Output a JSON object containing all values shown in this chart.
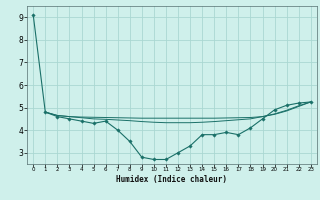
{
  "xlabel": "Humidex (Indice chaleur)",
  "ylabel": "",
  "bg_color": "#cff0eb",
  "grid_color": "#aad8d2",
  "line_color": "#1a7068",
  "marker_color": "#1a7068",
  "xlim": [
    -0.5,
    23.5
  ],
  "ylim": [
    2.5,
    9.5
  ],
  "yticks": [
    3,
    4,
    5,
    6,
    7,
    8,
    9
  ],
  "xticks": [
    0,
    1,
    2,
    3,
    4,
    5,
    6,
    7,
    8,
    9,
    10,
    11,
    12,
    13,
    14,
    15,
    16,
    17,
    18,
    19,
    20,
    21,
    22,
    23
  ],
  "series": [
    {
      "x": [
        0,
        1,
        2,
        3,
        4,
        5,
        6,
        7,
        8,
        9,
        10,
        11,
        12,
        13,
        14,
        15,
        16,
        17,
        18,
        19,
        20,
        21,
        22,
        23
      ],
      "y": [
        9.1,
        4.8,
        4.6,
        4.5,
        4.4,
        4.3,
        4.4,
        4.0,
        3.5,
        2.8,
        2.7,
        2.7,
        3.0,
        3.3,
        3.8,
        3.8,
        3.9,
        3.8,
        4.1,
        4.5,
        4.9,
        5.1,
        5.2,
        5.25
      ],
      "has_markers": true
    },
    {
      "x": [
        1,
        2,
        3,
        4,
        5,
        6,
        7,
        8,
        9,
        10,
        11,
        12,
        13,
        14,
        15,
        16,
        17,
        18,
        19,
        20,
        21,
        22,
        23
      ],
      "y": [
        4.8,
        4.65,
        4.6,
        4.58,
        4.57,
        4.56,
        4.55,
        4.54,
        4.53,
        4.53,
        4.53,
        4.53,
        4.53,
        4.53,
        4.53,
        4.54,
        4.55,
        4.56,
        4.6,
        4.7,
        4.85,
        5.05,
        5.25
      ],
      "has_markers": false
    },
    {
      "x": [
        1,
        2,
        3,
        4,
        5,
        6,
        7,
        8,
        9,
        10,
        11,
        12,
        13,
        14,
        15,
        16,
        17,
        18,
        19,
        20,
        21,
        22,
        23
      ],
      "y": [
        4.8,
        4.65,
        4.6,
        4.55,
        4.5,
        4.48,
        4.45,
        4.42,
        4.38,
        4.35,
        4.33,
        4.33,
        4.33,
        4.35,
        4.38,
        4.42,
        4.46,
        4.5,
        4.6,
        4.72,
        4.88,
        5.08,
        5.25
      ],
      "has_markers": false
    }
  ]
}
